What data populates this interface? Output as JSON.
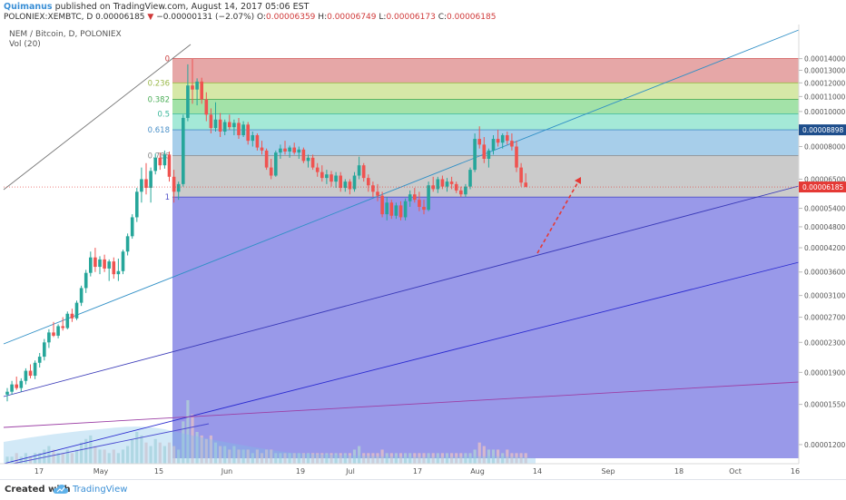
{
  "header": {
    "author": "Quimanus",
    "published": "published on TradingView.com, August 14, 2017 05:06 EST",
    "symbol": "POLONIEX:XEMBTC, D",
    "last": "0.00006185",
    "arrow": "▼",
    "change": "−0.00000131 (−2.07%)",
    "open_label": "O:",
    "open": "0.00006359",
    "high_label": "H:",
    "high": "0.00006749",
    "low_label": "L:",
    "low": "0.00006173",
    "close_label": "C:",
    "close": "0.00006185"
  },
  "legend": {
    "title": "NEM / Bitcoin, D, POLONIEX",
    "volume": "Vol (20)"
  },
  "footer": {
    "label": "Created with",
    "brand": "TradingView"
  },
  "colors": {
    "up": "#26a69a",
    "down": "#ef5350",
    "fib_0": "#e5a2a2",
    "fib_236": "#d4e7a2",
    "fib_382": "#9ee0a3",
    "fib_5": "#9fe8d5",
    "fib_618": "#a2cbe9",
    "fib_786": "#c8c8c8",
    "fib_1": "#9494e8",
    "price_tag": "#e53935",
    "mark_tag": "#1e4e8c"
  },
  "chart_data": {
    "type": "candlestick",
    "title": "NEM / Bitcoin, D, POLONIEX",
    "y_scale": "log",
    "ylim": [
      1.1e-05,
      0.000155
    ],
    "x_axis_labels": [
      "17",
      "May",
      "15",
      "Jun",
      "19",
      "Jul",
      "17",
      "Aug",
      "14",
      "Sep",
      "18",
      "Oct",
      "16"
    ],
    "y_axis_labels": [
      "0.00014000",
      "0.00013000",
      "0.00012000",
      "0.00011000",
      "0.00010000",
      "0.00008000",
      "0.00006500",
      "0.00005400",
      "0.00004800",
      "0.00004200",
      "0.00003600",
      "0.00003100",
      "0.00002700",
      "0.00002300",
      "0.00001900",
      "0.00001550",
      "0.00001200"
    ],
    "price_tags": [
      {
        "label": "0.00008898",
        "value": 8.898e-05
      },
      {
        "label": "0.00006185",
        "value": 6.185e-05
      }
    ],
    "fibonacci": {
      "levels": [
        {
          "label": "0",
          "ratio": 0,
          "price": 0.00014
        },
        {
          "label": "0.236",
          "ratio": 0.236,
          "price": 0.00012
        },
        {
          "label": "0.382",
          "ratio": 0.382,
          "price": 0.000108
        },
        {
          "label": "0.5",
          "ratio": 0.5,
          "price": 9.85e-05
        },
        {
          "label": "0.618",
          "ratio": 0.618,
          "price": 8.9e-05
        },
        {
          "label": "0.786",
          "ratio": 0.786,
          "price": 7.55e-05
        },
        {
          "label": "1",
          "ratio": 1,
          "price": 5.8e-05
        }
      ],
      "extension_low": 1.1e-05
    },
    "candles": [
      {
        "o": 1.65e-05,
        "h": 1.72e-05,
        "l": 1.58e-05,
        "c": 1.68e-05
      },
      {
        "o": 1.68e-05,
        "h": 1.8e-05,
        "l": 1.65e-05,
        "c": 1.76e-05
      },
      {
        "o": 1.76e-05,
        "h": 1.85e-05,
        "l": 1.7e-05,
        "c": 1.72e-05
      },
      {
        "o": 1.72e-05,
        "h": 1.83e-05,
        "l": 1.68e-05,
        "c": 1.8e-05
      },
      {
        "o": 1.8e-05,
        "h": 1.95e-05,
        "l": 1.76e-05,
        "c": 1.92e-05
      },
      {
        "o": 1.92e-05,
        "h": 2e-05,
        "l": 1.83e-05,
        "c": 1.86e-05
      },
      {
        "o": 1.86e-05,
        "h": 2.05e-05,
        "l": 1.82e-05,
        "c": 2.02e-05
      },
      {
        "o": 2.02e-05,
        "h": 2.15e-05,
        "l": 1.96e-05,
        "c": 2.1e-05
      },
      {
        "o": 2.1e-05,
        "h": 2.35e-05,
        "l": 2.05e-05,
        "c": 2.3e-05
      },
      {
        "o": 2.3e-05,
        "h": 2.5e-05,
        "l": 2.22e-05,
        "c": 2.45e-05
      },
      {
        "o": 2.45e-05,
        "h": 2.62e-05,
        "l": 2.38e-05,
        "c": 2.4e-05
      },
      {
        "o": 2.4e-05,
        "h": 2.58e-05,
        "l": 2.36e-05,
        "c": 2.55e-05
      },
      {
        "o": 2.55e-05,
        "h": 2.7e-05,
        "l": 2.48e-05,
        "c": 2.52e-05
      },
      {
        "o": 2.52e-05,
        "h": 2.8e-05,
        "l": 2.5e-05,
        "c": 2.76e-05
      },
      {
        "o": 2.76e-05,
        "h": 2.85e-05,
        "l": 2.62e-05,
        "c": 2.68e-05
      },
      {
        "o": 2.68e-05,
        "h": 3e-05,
        "l": 2.65e-05,
        "c": 2.96e-05
      },
      {
        "o": 2.96e-05,
        "h": 3.3e-05,
        "l": 2.9e-05,
        "c": 3.25e-05
      },
      {
        "o": 3.25e-05,
        "h": 3.65e-05,
        "l": 3.15e-05,
        "c": 3.58e-05
      },
      {
        "o": 3.58e-05,
        "h": 4.1e-05,
        "l": 3.5e-05,
        "c": 3.95e-05
      },
      {
        "o": 3.95e-05,
        "h": 4.2e-05,
        "l": 3.6e-05,
        "c": 3.72e-05
      },
      {
        "o": 3.72e-05,
        "h": 3.98e-05,
        "l": 3.55e-05,
        "c": 3.9e-05
      },
      {
        "o": 3.9e-05,
        "h": 4.02e-05,
        "l": 3.6e-05,
        "c": 3.68e-05
      },
      {
        "o": 3.68e-05,
        "h": 3.9e-05,
        "l": 3.4e-05,
        "c": 3.85e-05
      },
      {
        "o": 3.85e-05,
        "h": 3.95e-05,
        "l": 3.45e-05,
        "c": 3.55e-05
      },
      {
        "o": 3.55e-05,
        "h": 3.92e-05,
        "l": 3.4e-05,
        "c": 3.62e-05
      },
      {
        "o": 3.62e-05,
        "h": 4.15e-05,
        "l": 3.55e-05,
        "c": 4.1e-05
      },
      {
        "o": 4.1e-05,
        "h": 4.6e-05,
        "l": 4e-05,
        "c": 4.52e-05
      },
      {
        "o": 4.52e-05,
        "h": 5.2e-05,
        "l": 4.45e-05,
        "c": 5.1e-05
      },
      {
        "o": 5.1e-05,
        "h": 6.15e-05,
        "l": 4.95e-05,
        "c": 6e-05
      },
      {
        "o": 6e-05,
        "h": 7e-05,
        "l": 5.6e-05,
        "c": 6.5e-05
      },
      {
        "o": 6.5e-05,
        "h": 7.2e-05,
        "l": 5.9e-05,
        "c": 6.15e-05
      },
      {
        "o": 6.15e-05,
        "h": 7e-05,
        "l": 5.6e-05,
        "c": 6.85e-05
      },
      {
        "o": 6.85e-05,
        "h": 7.65e-05,
        "l": 6.7e-05,
        "c": 7.45e-05
      },
      {
        "o": 7.45e-05,
        "h": 7.7e-05,
        "l": 6.9e-05,
        "c": 7.1e-05
      },
      {
        "o": 7.1e-05,
        "h": 7.8e-05,
        "l": 6.95e-05,
        "c": 7.6e-05
      },
      {
        "o": 7.6e-05,
        "h": 7.75e-05,
        "l": 6.4e-05,
        "c": 6.6e-05
      },
      {
        "o": 6.6e-05,
        "h": 6.9e-05,
        "l": 5.6e-05,
        "c": 6e-05
      },
      {
        "o": 6e-05,
        "h": 6.4e-05,
        "l": 5.7e-05,
        "c": 6.3e-05
      },
      {
        "o": 6.3e-05,
        "h": 9.8e-05,
        "l": 6.2e-05,
        "c": 9.6e-05
      },
      {
        "o": 9.6e-05,
        "h": 0.000135,
        "l": 9.4e-05,
        "c": 0.000118
      },
      {
        "o": 0.000118,
        "h": 0.00014,
        "l": 0.000105,
        "c": 0.000115
      },
      {
        "o": 0.000115,
        "h": 0.0001235,
        "l": 0.000104,
        "c": 0.000121
      },
      {
        "o": 0.000121,
        "h": 0.000124,
        "l": 0.000105,
        "c": 0.000108
      },
      {
        "o": 0.000108,
        "h": 0.000113,
        "l": 9.4e-05,
        "c": 9.8e-05
      },
      {
        "o": 9.8e-05,
        "h": 0.000102,
        "l": 8.7e-05,
        "c": 9e-05
      },
      {
        "o": 9e-05,
        "h": 0.000106,
        "l": 8.8e-05,
        "c": 9.5e-05
      },
      {
        "o": 9.5e-05,
        "h": 9.9e-05,
        "l": 8.5e-05,
        "c": 8.8e-05
      },
      {
        "o": 8.8e-05,
        "h": 9.5e-05,
        "l": 8.6e-05,
        "c": 9.35e-05
      },
      {
        "o": 9.35e-05,
        "h": 9.8e-05,
        "l": 8.9e-05,
        "c": 9.05e-05
      },
      {
        "o": 9.05e-05,
        "h": 9.5e-05,
        "l": 8.6e-05,
        "c": 9.3e-05
      },
      {
        "o": 9.3e-05,
        "h": 9.6e-05,
        "l": 8.4e-05,
        "c": 8.6e-05
      },
      {
        "o": 8.6e-05,
        "h": 9.4e-05,
        "l": 8.5e-05,
        "c": 9.2e-05
      },
      {
        "o": 9.2e-05,
        "h": 9.35e-05,
        "l": 8.1e-05,
        "c": 8.3e-05
      },
      {
        "o": 8.3e-05,
        "h": 8.8e-05,
        "l": 8e-05,
        "c": 8.6e-05
      },
      {
        "o": 8.6e-05,
        "h": 8.7e-05,
        "l": 7.8e-05,
        "c": 7.95e-05
      },
      {
        "o": 7.95e-05,
        "h": 8.3e-05,
        "l": 7.6e-05,
        "c": 7.8e-05
      },
      {
        "o": 7.8e-05,
        "h": 7.9e-05,
        "l": 6.9e-05,
        "c": 7e-05
      },
      {
        "o": 7e-05,
        "h": 7.4e-05,
        "l": 6.5e-05,
        "c": 6.65e-05
      },
      {
        "o": 6.65e-05,
        "h": 7.8e-05,
        "l": 6.6e-05,
        "c": 7.7e-05
      },
      {
        "o": 7.7e-05,
        "h": 8.1e-05,
        "l": 7.4e-05,
        "c": 7.9e-05
      },
      {
        "o": 7.9e-05,
        "h": 8.3e-05,
        "l": 7.6e-05,
        "c": 7.75e-05
      },
      {
        "o": 7.75e-05,
        "h": 8.05e-05,
        "l": 7.45e-05,
        "c": 7.95e-05
      },
      {
        "o": 7.95e-05,
        "h": 8.2e-05,
        "l": 7.6e-05,
        "c": 7.7e-05
      },
      {
        "o": 7.7e-05,
        "h": 8e-05,
        "l": 7.4e-05,
        "c": 7.85e-05
      },
      {
        "o": 7.85e-05,
        "h": 7.95e-05,
        "l": 7.2e-05,
        "c": 7.3e-05
      },
      {
        "o": 7.3e-05,
        "h": 7.6e-05,
        "l": 7e-05,
        "c": 7.45e-05
      },
      {
        "o": 7.45e-05,
        "h": 7.6e-05,
        "l": 6.9e-05,
        "c": 7e-05
      },
      {
        "o": 7e-05,
        "h": 7.2e-05,
        "l": 6.6e-05,
        "c": 6.8e-05
      },
      {
        "o": 6.8e-05,
        "h": 7.1e-05,
        "l": 6.4e-05,
        "c": 6.55e-05
      },
      {
        "o": 6.55e-05,
        "h": 6.9e-05,
        "l": 6.3e-05,
        "c": 6.7e-05
      },
      {
        "o": 6.7e-05,
        "h": 6.85e-05,
        "l": 6.2e-05,
        "c": 6.4e-05
      },
      {
        "o": 6.4e-05,
        "h": 6.8e-05,
        "l": 6.15e-05,
        "c": 6.65e-05
      },
      {
        "o": 6.65e-05,
        "h": 6.8e-05,
        "l": 6e-05,
        "c": 6.15e-05
      },
      {
        "o": 6.15e-05,
        "h": 6.5e-05,
        "l": 6e-05,
        "c": 6.4e-05
      },
      {
        "o": 6.4e-05,
        "h": 6.5e-05,
        "l": 5.9e-05,
        "c": 6.1e-05
      },
      {
        "o": 6.1e-05,
        "h": 6.8e-05,
        "l": 6e-05,
        "c": 6.65e-05
      },
      {
        "o": 6.65e-05,
        "h": 7.5e-05,
        "l": 6.5e-05,
        "c": 7.1e-05
      },
      {
        "o": 7.1e-05,
        "h": 7.2e-05,
        "l": 6.4e-05,
        "c": 6.55e-05
      },
      {
        "o": 6.55e-05,
        "h": 6.7e-05,
        "l": 6e-05,
        "c": 6.25e-05
      },
      {
        "o": 6.25e-05,
        "h": 6.4e-05,
        "l": 5.8e-05,
        "c": 6e-05
      },
      {
        "o": 6e-05,
        "h": 6.3e-05,
        "l": 5.65e-05,
        "c": 5.85e-05
      },
      {
        "o": 5.85e-05,
        "h": 6e-05,
        "l": 5.1e-05,
        "c": 5.2e-05
      },
      {
        "o": 5.2e-05,
        "h": 5.8e-05,
        "l": 5e-05,
        "c": 5.6e-05
      },
      {
        "o": 5.6e-05,
        "h": 5.7e-05,
        "l": 5.05e-05,
        "c": 5.15e-05
      },
      {
        "o": 5.15e-05,
        "h": 5.6e-05,
        "l": 5.05e-05,
        "c": 5.5e-05
      },
      {
        "o": 5.5e-05,
        "h": 5.65e-05,
        "l": 5e-05,
        "c": 5.1e-05
      },
      {
        "o": 5.1e-05,
        "h": 5.75e-05,
        "l": 5e-05,
        "c": 5.65e-05
      },
      {
        "o": 5.65e-05,
        "h": 6.05e-05,
        "l": 5.45e-05,
        "c": 5.9e-05
      },
      {
        "o": 5.9e-05,
        "h": 6.15e-05,
        "l": 5.6e-05,
        "c": 5.7e-05
      },
      {
        "o": 5.7e-05,
        "h": 6e-05,
        "l": 5.3e-05,
        "c": 5.45e-05
      },
      {
        "o": 5.45e-05,
        "h": 5.7e-05,
        "l": 5.2e-05,
        "c": 5.35e-05
      },
      {
        "o": 5.35e-05,
        "h": 6.4e-05,
        "l": 5.3e-05,
        "c": 6.25e-05
      },
      {
        "o": 6.25e-05,
        "h": 6.6e-05,
        "l": 6e-05,
        "c": 6.1e-05
      },
      {
        "o": 6.1e-05,
        "h": 6.6e-05,
        "l": 5.95e-05,
        "c": 6.5e-05
      },
      {
        "o": 6.5e-05,
        "h": 6.65e-05,
        "l": 6.1e-05,
        "c": 6.2e-05
      },
      {
        "o": 6.2e-05,
        "h": 6.55e-05,
        "l": 6e-05,
        "c": 6.4e-05
      },
      {
        "o": 6.4e-05,
        "h": 6.6e-05,
        "l": 6.1e-05,
        "c": 6.3e-05
      },
      {
        "o": 6.3e-05,
        "h": 6.4e-05,
        "l": 5.95e-05,
        "c": 6.05e-05
      },
      {
        "o": 6.05e-05,
        "h": 6.2e-05,
        "l": 5.8e-05,
        "c": 5.9e-05
      },
      {
        "o": 5.9e-05,
        "h": 6.3e-05,
        "l": 5.8e-05,
        "c": 6.2e-05
      },
      {
        "o": 6.2e-05,
        "h": 7e-05,
        "l": 6.1e-05,
        "c": 6.9e-05
      },
      {
        "o": 6.9e-05,
        "h": 8.7e-05,
        "l": 6.8e-05,
        "c": 8.4e-05
      },
      {
        "o": 8.4e-05,
        "h": 9.1e-05,
        "l": 7.9e-05,
        "c": 8.1e-05
      },
      {
        "o": 8.1e-05,
        "h": 8.5e-05,
        "l": 7.2e-05,
        "c": 7.4e-05
      },
      {
        "o": 7.4e-05,
        "h": 7.9e-05,
        "l": 7e-05,
        "c": 7.8e-05
      },
      {
        "o": 7.8e-05,
        "h": 8.6e-05,
        "l": 7.6e-05,
        "c": 8.4e-05
      },
      {
        "o": 8.4e-05,
        "h": 8.9e-05,
        "l": 8e-05,
        "c": 8.2e-05
      },
      {
        "o": 8.2e-05,
        "h": 8.7e-05,
        "l": 7.9e-05,
        "c": 8.6e-05
      },
      {
        "o": 8.6e-05,
        "h": 8.8e-05,
        "l": 8.1e-05,
        "c": 8.3e-05
      },
      {
        "o": 8.3e-05,
        "h": 8.7e-05,
        "l": 7.8e-05,
        "c": 8e-05
      },
      {
        "o": 8e-05,
        "h": 8.3e-05,
        "l": 6.8e-05,
        "c": 7e-05
      },
      {
        "o": 7e-05,
        "h": 7.2e-05,
        "l": 6.2e-05,
        "c": 6.36e-05
      },
      {
        "o": 6.36e-05,
        "h": 6.75e-05,
        "l": 6.17e-05,
        "c": 6.19e-05
      }
    ],
    "volume": [
      2,
      2,
      3,
      2,
      3,
      2,
      3,
      3,
      4,
      5,
      4,
      3,
      3,
      4,
      3,
      4,
      6,
      7,
      8,
      5,
      4,
      4,
      3,
      4,
      3,
      4,
      5,
      7,
      9,
      8,
      6,
      5,
      7,
      6,
      5,
      6,
      5,
      4,
      12,
      18,
      14,
      9,
      8,
      7,
      8,
      6,
      5,
      5,
      4,
      5,
      4,
      4,
      4,
      3,
      4,
      3,
      4,
      4,
      3,
      3,
      3,
      3,
      3,
      3,
      3,
      3,
      3,
      3,
      3,
      3,
      3,
      3,
      3,
      3,
      3,
      4,
      5,
      3,
      3,
      3,
      3,
      4,
      3,
      3,
      3,
      3,
      3,
      3,
      3,
      3,
      3,
      3,
      3,
      3,
      3,
      3,
      3,
      3,
      3,
      3,
      3,
      4,
      6,
      5,
      4,
      4,
      4,
      3,
      4,
      3,
      3,
      3,
      3
    ]
  }
}
